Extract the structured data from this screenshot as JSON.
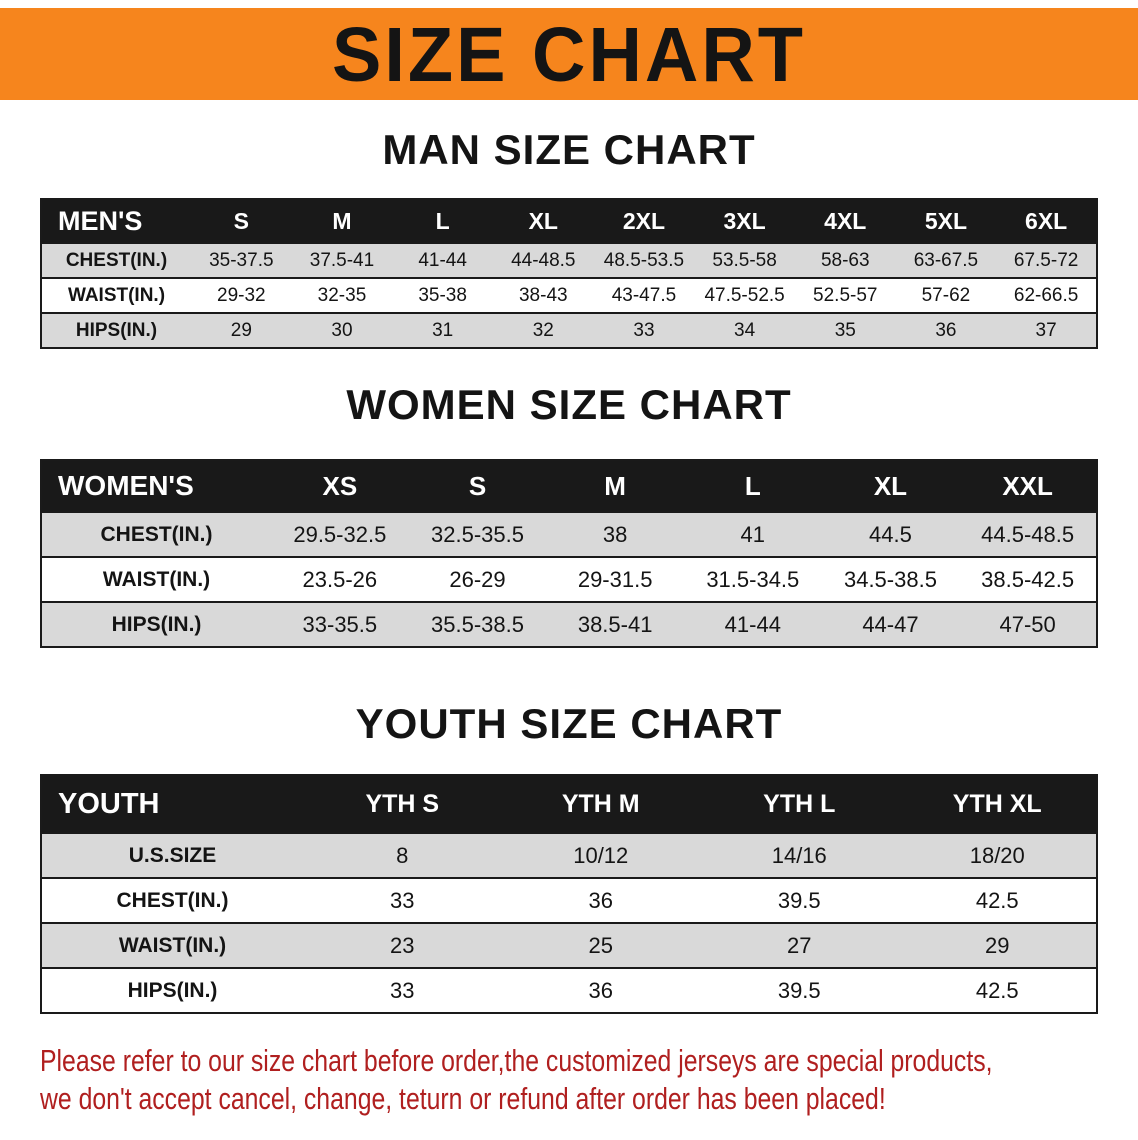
{
  "colors": {
    "banner_orange": "#F6851D",
    "table_header_black": "#191919",
    "row_gray": "#D9D9D9",
    "notice_red": "#B01F1F"
  },
  "banner": {
    "title": "SIZE CHART"
  },
  "men": {
    "heading": "MAN SIZE CHART",
    "table": {
      "header": [
        "MEN'S",
        "S",
        "M",
        "L",
        "XL",
        "2XL",
        "3XL",
        "4XL",
        "5XL",
        "6XL"
      ],
      "rows": [
        [
          "CHEST(IN.)",
          "35-37.5",
          "37.5-41",
          "41-44",
          "44-48.5",
          "48.5-53.5",
          "53.5-58",
          "58-63",
          "63-67.5",
          "67.5-72"
        ],
        [
          "WAIST(IN.)",
          "29-32",
          "32-35",
          "35-38",
          "38-43",
          "43-47.5",
          "47.5-52.5",
          "52.5-57",
          "57-62",
          "62-66.5"
        ],
        [
          "HIPS(IN.)",
          "29",
          "30",
          "31",
          "32",
          "33",
          "34",
          "35",
          "36",
          "37"
        ]
      ]
    }
  },
  "women": {
    "heading": "WOMEN SIZE CHART",
    "table": {
      "header": [
        "WOMEN'S",
        "XS",
        "S",
        "M",
        "L",
        "XL",
        "XXL"
      ],
      "rows": [
        [
          "CHEST(IN.)",
          "29.5-32.5",
          "32.5-35.5",
          "38",
          "41",
          "44.5",
          "44.5-48.5"
        ],
        [
          "WAIST(IN.)",
          "23.5-26",
          "26-29",
          "29-31.5",
          "31.5-34.5",
          "34.5-38.5",
          "38.5-42.5"
        ],
        [
          "HIPS(IN.)",
          "33-35.5",
          "35.5-38.5",
          "38.5-41",
          "41-44",
          "44-47",
          "47-50"
        ]
      ]
    }
  },
  "youth": {
    "heading": "YOUTH SIZE CHART",
    "table": {
      "header": [
        "YOUTH",
        "YTH S",
        "YTH M",
        "YTH L",
        "YTH XL"
      ],
      "rows": [
        [
          "U.S.SIZE",
          "8",
          "10/12",
          "14/16",
          "18/20"
        ],
        [
          "CHEST(IN.)",
          "33",
          "36",
          "39.5",
          "42.5"
        ],
        [
          "WAIST(IN.)",
          "23",
          "25",
          "27",
          "29"
        ],
        [
          "HIPS(IN.)",
          "33",
          "36",
          "39.5",
          "42.5"
        ]
      ]
    }
  },
  "notice": {
    "line1": "Please refer to our size chart before order,the customized jerseys are special products,",
    "line2": "we don't accept cancel, change, teturn or refund after order has been placed!"
  }
}
